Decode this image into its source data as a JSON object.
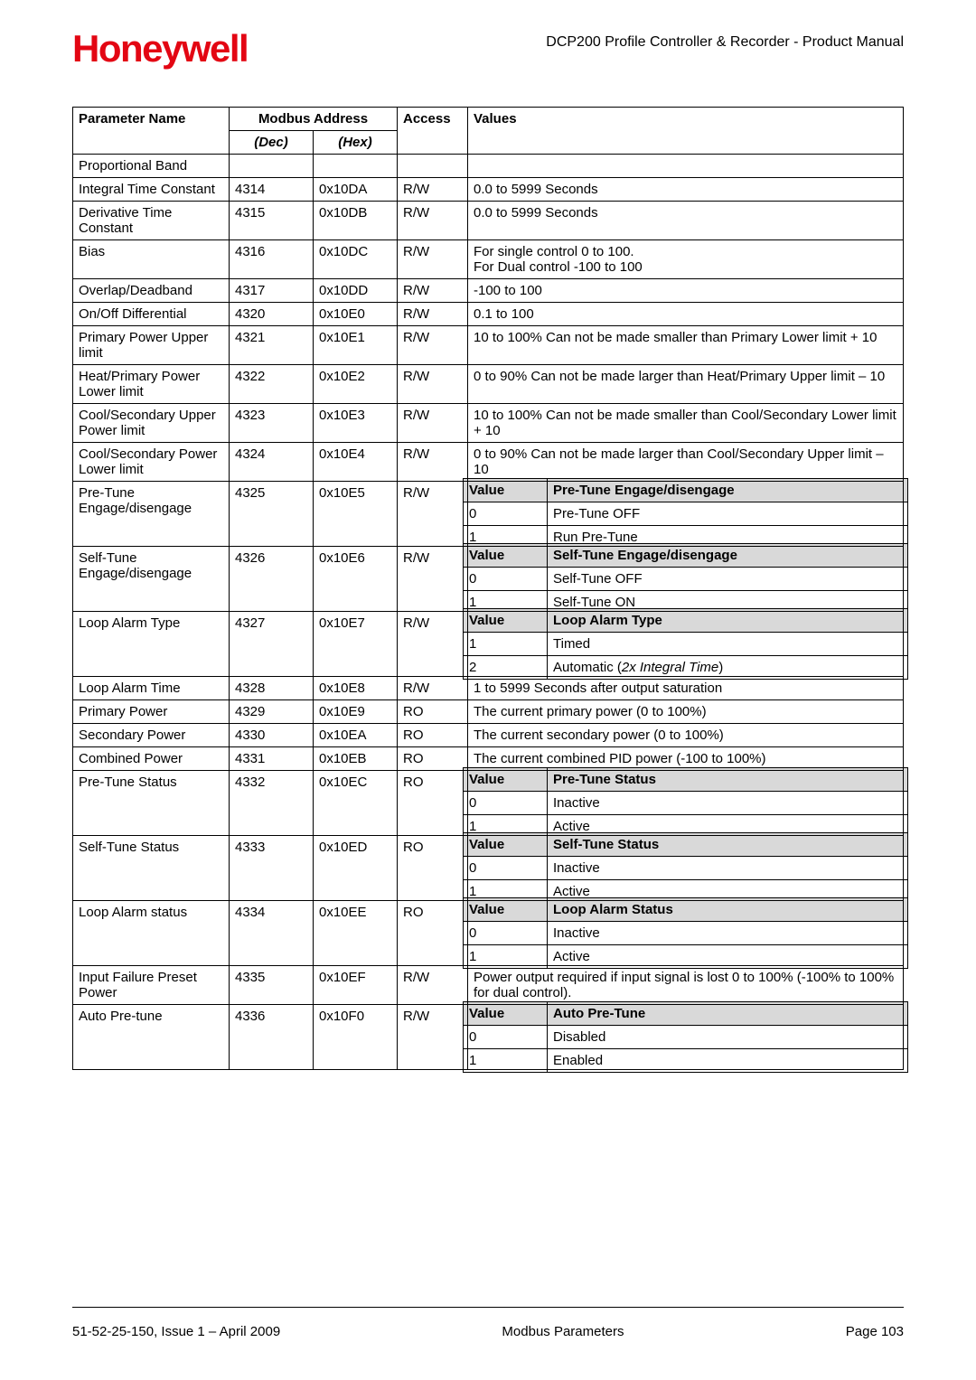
{
  "header": {
    "logo": "Honeywell",
    "title": "DCP200 Profile Controller & Recorder - Product Manual"
  },
  "table": {
    "headers": {
      "param": "Parameter Name",
      "modbus": "Modbus Address",
      "dec": "(Dec)",
      "hex": "(Hex)",
      "access": "Access",
      "values": "Values"
    }
  },
  "rows": {
    "r1": {
      "name": "Proportional Band"
    },
    "r2": {
      "name": "Integral Time Constant",
      "dec": "4314",
      "hex": "0x10DA",
      "access": "R/W",
      "val": "0.0 to 5999 Seconds"
    },
    "r3": {
      "name": "Derivative Time Constant",
      "dec": "4315",
      "hex": "0x10DB",
      "access": "R/W",
      "val": "0.0 to 5999 Seconds"
    },
    "r4": {
      "name": "Bias",
      "dec": "4316",
      "hex": "0x10DC",
      "access": "R/W",
      "val1": "For single control 0 to 100.",
      "val2": "For Dual control -100 to 100"
    },
    "r5": {
      "name": "Overlap/Deadband",
      "dec": "4317",
      "hex": "0x10DD",
      "access": "R/W",
      "val": "-100 to 100"
    },
    "r6": {
      "name": "On/Off Differential",
      "dec": "4320",
      "hex": "0x10E0",
      "access": "R/W",
      "val": "0.1 to 100"
    },
    "r7": {
      "name": "Primary Power Upper limit",
      "dec": "4321",
      "hex": "0x10E1",
      "access": "R/W",
      "val": "10 to 100% Can not be made smaller than Primary Lower limit + 10"
    },
    "r8": {
      "name": "Heat/Primary Power Lower limit",
      "dec": "4322",
      "hex": "0x10E2",
      "access": "R/W",
      "val": "0 to 90% Can not be made larger than Heat/Primary Upper limit – 10"
    },
    "r9": {
      "name": "Cool/Secondary Upper Power limit",
      "dec": "4323",
      "hex": "0x10E3",
      "access": "R/W",
      "val": "10 to 100% Can not be made smaller than Cool/Secondary Lower limit + 10"
    },
    "r10": {
      "name": "Cool/Secondary Power Lower limit",
      "dec": "4324",
      "hex": "0x10E4",
      "access": "R/W",
      "val": "0 to 90% Can not be made larger than Cool/Secondary Upper limit – 10"
    },
    "r11": {
      "name": "Pre-Tune Engage/disengage",
      "dec": "4325",
      "hex": "0x10E5",
      "access": "R/W",
      "sub": {
        "h1": "Value",
        "h2": "Pre-Tune Engage/disengage",
        "a1": "0",
        "a2": "Pre-Tune OFF",
        "b1": "1",
        "b2": "Run Pre-Tune"
      }
    },
    "r12": {
      "name": "Self-Tune Engage/disengage",
      "dec": "4326",
      "hex": "0x10E6",
      "access": "R/W",
      "sub": {
        "h1": "Value",
        "h2": "Self-Tune Engage/disengage",
        "a1": "0",
        "a2": "Self-Tune OFF",
        "b1": "1",
        "b2": "Self-Tune ON"
      }
    },
    "r13": {
      "name": "Loop Alarm Type",
      "dec": "4327",
      "hex": "0x10E7",
      "access": "R/W",
      "sub": {
        "h1": "Value",
        "h2": "Loop Alarm Type",
        "a1": "1",
        "a2": "Timed",
        "b1": "2",
        "b2a": "Automatic (",
        "b2b": "2x Integral Time",
        "b2c": ")"
      }
    },
    "r14": {
      "name": "Loop Alarm Time",
      "dec": "4328",
      "hex": "0x10E8",
      "access": "R/W",
      "val": "1 to 5999 Seconds after output saturation"
    },
    "r15": {
      "name": "Primary Power",
      "dec": "4329",
      "hex": "0x10E9",
      "access": "RO",
      "val": "The current primary power (0 to 100%)"
    },
    "r16": {
      "name": "Secondary Power",
      "dec": "4330",
      "hex": "0x10EA",
      "access": "RO",
      "val": "The current secondary power (0 to 100%)"
    },
    "r17": {
      "name": "Combined Power",
      "dec": "4331",
      "hex": "0x10EB",
      "access": "RO",
      "val": "The current combined PID power (-100 to 100%)"
    },
    "r18": {
      "name": "Pre-Tune Status",
      "dec": "4332",
      "hex": "0x10EC",
      "access": "RO",
      "sub": {
        "h1": "Value",
        "h2": "Pre-Tune Status",
        "a1": "0",
        "a2": "Inactive",
        "b1": "1",
        "b2": "Active"
      }
    },
    "r19": {
      "name": "Self-Tune Status",
      "dec": "4333",
      "hex": "0x10ED",
      "access": "RO",
      "sub": {
        "h1": "Value",
        "h2": "Self-Tune Status",
        "a1": "0",
        "a2": "Inactive",
        "b1": "1",
        "b2": "Active"
      }
    },
    "r20": {
      "name": "Loop Alarm status",
      "dec": "4334",
      "hex": "0x10EE",
      "access": "RO",
      "sub": {
        "h1": "Value",
        "h2": "Loop Alarm Status",
        "a1": "0",
        "a2": "Inactive",
        "b1": "1",
        "b2": "Active"
      }
    },
    "r21": {
      "name": "Input Failure Preset Power",
      "dec": "4335",
      "hex": "0x10EF",
      "access": "R/W",
      "val": "Power output required if input signal is lost 0 to 100% (-100% to 100% for dual control)."
    },
    "r22": {
      "name": "Auto Pre-tune",
      "dec": "4336",
      "hex": "0x10F0",
      "access": "R/W",
      "sub": {
        "h1": "Value",
        "h2": "Auto Pre-Tune",
        "a1": "0",
        "a2": "Disabled",
        "b1": "1",
        "b2": "Enabled"
      }
    }
  },
  "footer": {
    "left": "51-52-25-150, Issue 1 – April 2009",
    "center": "Modbus Parameters",
    "right": "Page 103"
  },
  "colors": {
    "logo": "#E30613",
    "subheader_bg": "#d9d9d9",
    "border": "#000000",
    "text": "#000000",
    "background": "#ffffff"
  },
  "typography": {
    "body_fontsize": 15,
    "logo_fontsize": 42,
    "font_family": "Arial"
  }
}
